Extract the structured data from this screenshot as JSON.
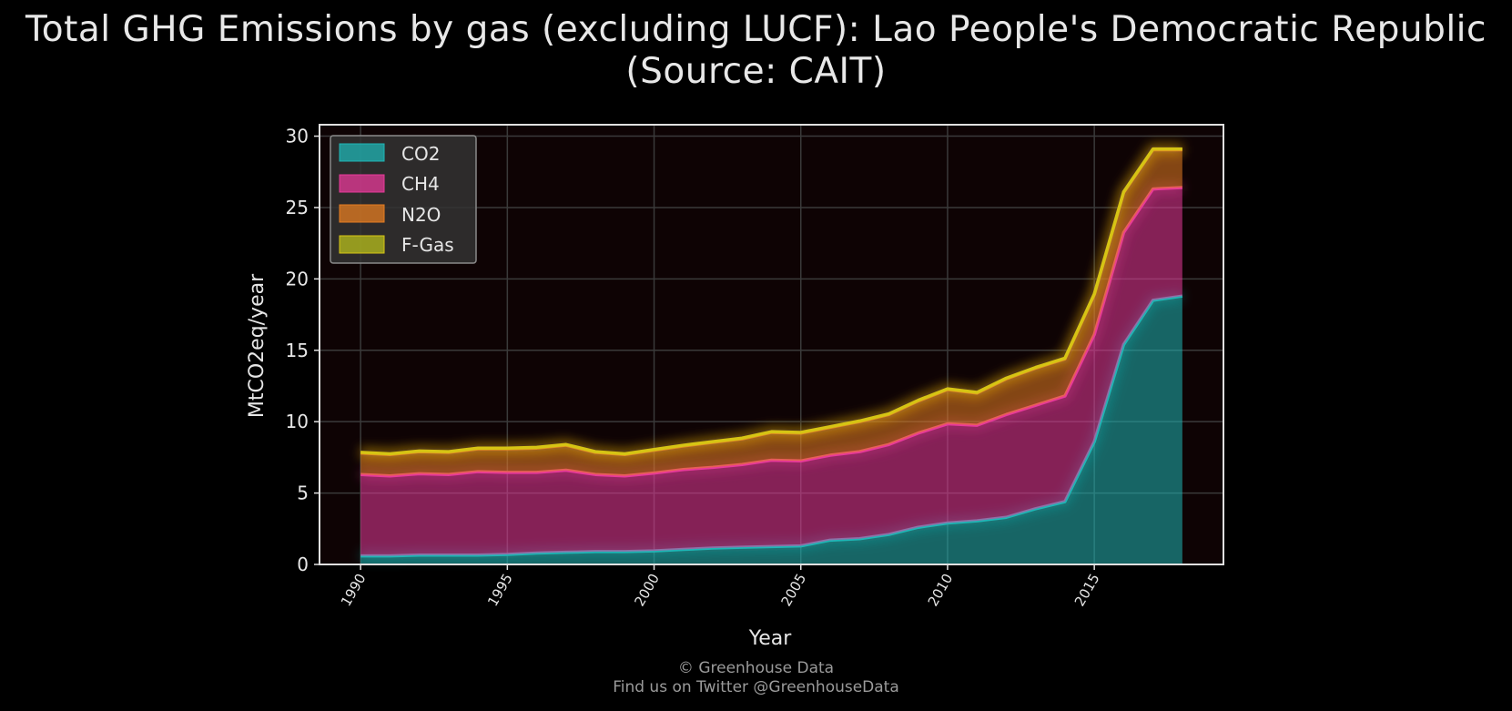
{
  "title_line1": "Total GHG Emissions by gas (excluding LUCF): Lao People's Democratic Republic",
  "title_line2": "(Source: CAIT)",
  "footer_line1": "© Greenhouse Data",
  "footer_line2": "Find us on Twitter @GreenhouseData",
  "chart_data": {
    "type": "area",
    "stacked": true,
    "title": "Total GHG Emissions by gas (excluding LUCF): Lao People's Democratic Republic (Source: CAIT)",
    "xlabel": "Year",
    "ylabel": "MtCO2eq/year",
    "xlim": [
      1988.6,
      2019.4
    ],
    "ylim": [
      0,
      30.8
    ],
    "xticks": [
      1990,
      1995,
      2000,
      2005,
      2010,
      2015
    ],
    "yticks": [
      0,
      5,
      10,
      15,
      20,
      25,
      30
    ],
    "grid": true,
    "legend_position": "top-left",
    "x": [
      1990,
      1991,
      1992,
      1993,
      1994,
      1995,
      1996,
      1997,
      1998,
      1999,
      2000,
      2001,
      2002,
      2003,
      2004,
      2005,
      2006,
      2007,
      2008,
      2009,
      2010,
      2011,
      2012,
      2013,
      2014,
      2015,
      2016,
      2017,
      2018
    ],
    "series": [
      {
        "name": "CO2",
        "color": "#1fb6b6",
        "values": [
          0.6,
          0.6,
          0.65,
          0.65,
          0.65,
          0.7,
          0.8,
          0.85,
          0.9,
          0.9,
          0.95,
          1.05,
          1.15,
          1.2,
          1.25,
          1.3,
          1.7,
          1.8,
          2.1,
          2.6,
          2.9,
          3.05,
          3.3,
          3.9,
          4.4,
          8.6,
          15.4,
          18.5,
          18.8
        ]
      },
      {
        "name": "CH4",
        "color": "#e83a9a",
        "values": [
          5.7,
          5.6,
          5.7,
          5.65,
          5.85,
          5.75,
          5.65,
          5.75,
          5.4,
          5.3,
          5.45,
          5.6,
          5.65,
          5.8,
          6.05,
          5.95,
          5.95,
          6.1,
          6.3,
          6.6,
          6.95,
          6.7,
          7.2,
          7.25,
          7.4,
          7.5,
          7.85,
          7.8,
          7.6
        ]
      },
      {
        "name": "N2O",
        "color": "#e67e22",
        "values": [
          1.5,
          1.5,
          1.55,
          1.55,
          1.6,
          1.65,
          1.7,
          1.75,
          1.55,
          1.5,
          1.6,
          1.65,
          1.75,
          1.8,
          1.95,
          1.95,
          1.95,
          2.1,
          2.1,
          2.25,
          2.4,
          2.25,
          2.5,
          2.6,
          2.6,
          2.8,
          2.8,
          2.75,
          2.65
        ]
      },
      {
        "name": "F-Gas",
        "color": "#d6c414",
        "values": [
          0.05,
          0.05,
          0.05,
          0.05,
          0.05,
          0.05,
          0.05,
          0.05,
          0.05,
          0.05,
          0.05,
          0.05,
          0.05,
          0.05,
          0.05,
          0.05,
          0.05,
          0.05,
          0.05,
          0.05,
          0.05,
          0.05,
          0.05,
          0.05,
          0.05,
          0.05,
          0.05,
          0.05,
          0.05
        ]
      }
    ]
  }
}
